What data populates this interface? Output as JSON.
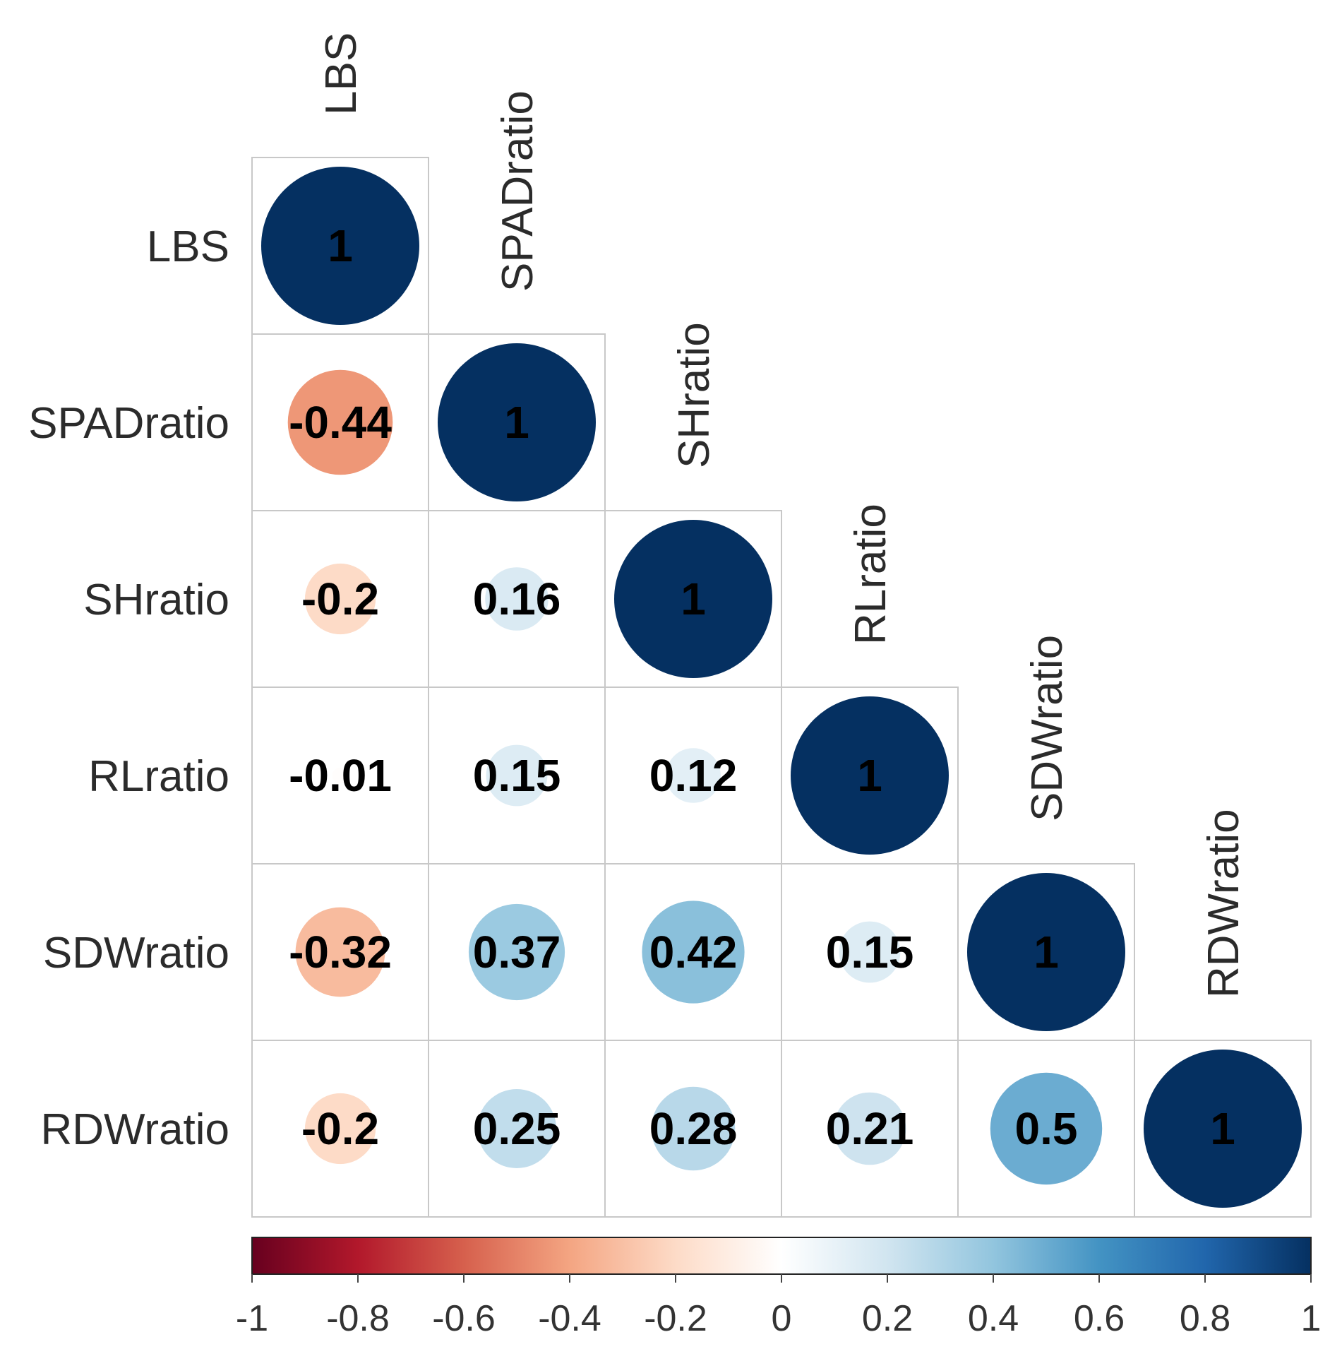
{
  "chart_data": {
    "type": "heatmap",
    "style": "correlation-circles-lower-triangle",
    "variables": [
      "LBS",
      "SPADratio",
      "SHratio",
      "RLratio",
      "SDWratio",
      "RDWratio"
    ],
    "matrix": [
      [
        1
      ],
      [
        -0.44,
        1
      ],
      [
        -0.2,
        0.16,
        1
      ],
      [
        -0.01,
        0.15,
        0.12,
        1
      ],
      [
        -0.32,
        0.37,
        0.42,
        0.15,
        1
      ],
      [
        -0.2,
        0.25,
        0.28,
        0.21,
        0.5,
        1
      ]
    ],
    "value_labels": [
      [
        "1"
      ],
      [
        "-0.44",
        "1"
      ],
      [
        "-0.2",
        "0.16",
        "1"
      ],
      [
        "-0.01",
        "0.15",
        "0.12",
        "1"
      ],
      [
        "-0.32",
        "0.37",
        "0.42",
        "0.15",
        "1"
      ],
      [
        "-0.2",
        "0.25",
        "0.28",
        "0.21",
        "0.5",
        "1"
      ]
    ],
    "colorbar": {
      "range": [
        -1,
        1
      ],
      "ticks": [
        "-1",
        "-0.8",
        "-0.6",
        "-0.4",
        "-0.2",
        "0",
        "0.2",
        "0.4",
        "0.6",
        "0.8",
        "1"
      ],
      "colors": [
        "#67001f",
        "#b2182b",
        "#d6604d",
        "#f4a582",
        "#fddbc7",
        "#ffffff",
        "#d1e5f0",
        "#92c5de",
        "#4393c3",
        "#2166ac",
        "#053061"
      ]
    },
    "colors": {
      "cell_border": "#c8c8c8",
      "label_text": "#2b2b2b",
      "value_text": "#000000"
    }
  }
}
